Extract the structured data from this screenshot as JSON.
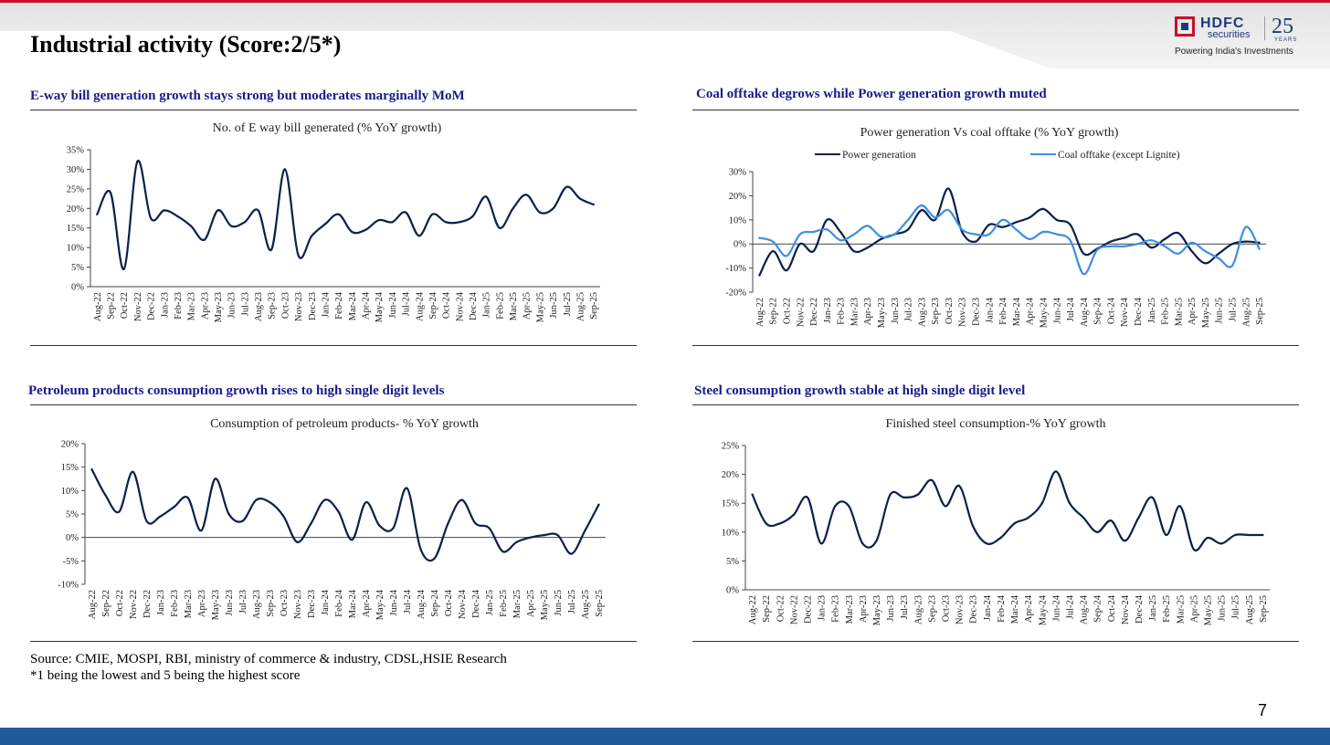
{
  "page": {
    "title": "Industrial activity (Score:2/5*)",
    "page_number": "7",
    "source_line1": "Source: CMIE, MOSPI, RBI, ministry of commerce & industry, CDSL,HSIE Research",
    "source_line2": "*1 being the lowest and 5 being the highest score"
  },
  "logo": {
    "brand": "HDFC",
    "sub": "securities",
    "years": "25",
    "years_label": "YEARS",
    "tagline": "Powering India's Investments"
  },
  "colors": {
    "accent_red": "#c8102e",
    "brand_blue": "#1f5a99",
    "heading_blue": "#1a1a8c",
    "series_dark": "#0d1f4a",
    "series_light": "#3d8fe0"
  },
  "sections": {
    "eway": "E-way bill generation growth stays strong but moderates marginally MoM",
    "coal": "Coal offtake degrows while Power generation growth muted",
    "petroleum": "Petroleum products consumption growth rises to high single digit levels",
    "steel": "Steel consumption growth stable at high single digit level"
  },
  "chart_data": [
    {
      "id": "eway",
      "type": "line",
      "title": "No. of E way bill generated (% YoY growth)",
      "categories": [
        "Aug-22",
        "Sep-22",
        "Oct-22",
        "Nov-22",
        "Dec-22",
        "Jan-23",
        "Feb-23",
        "Mar-23",
        "Apr-23",
        "May-23",
        "Jun-23",
        "Jul-23",
        "Aug-23",
        "Sep-23",
        "Oct-23",
        "Nov-23",
        "Dec-23",
        "Jan-24",
        "Feb-24",
        "Mar-24",
        "Apr-24",
        "May-24",
        "Jun-24",
        "Jul-24",
        "Aug-24",
        "Sep-24",
        "Oct-24",
        "Nov-24",
        "Dec-24",
        "Jan-25",
        "Feb-25",
        "Mar-25",
        "Apr-25",
        "May-25",
        "Jun-25",
        "Jul-25",
        "Aug-25",
        "Sep-25"
      ],
      "series": [
        {
          "name": "E way bill",
          "color": "#0d1f4a",
          "values": [
            18.5,
            24,
            4.5,
            32,
            17.5,
            19.5,
            18,
            15.5,
            12,
            19.5,
            15.5,
            16.5,
            19.5,
            9.5,
            30,
            8,
            13,
            16,
            18.5,
            14,
            14.5,
            17,
            16.5,
            19,
            13,
            18.5,
            16.5,
            16.5,
            18,
            23,
            15,
            20,
            23.5,
            19,
            20,
            25.5,
            22.5,
            21
          ]
        }
      ],
      "ylim": [
        0,
        35
      ],
      "yticks": [
        0,
        5,
        10,
        15,
        20,
        25,
        30,
        35
      ],
      "ytick_labels": [
        "0%",
        "5%",
        "10%",
        "15%",
        "20%",
        "25%",
        "30%",
        "35%"
      ],
      "legend": []
    },
    {
      "id": "coal",
      "type": "line",
      "title": "Power generation Vs coal offtake (% YoY growth)",
      "categories": [
        "Aug-22",
        "Sep-22",
        "Oct-22",
        "Nov-22",
        "Dec-22",
        "Jan-23",
        "Feb-23",
        "Mar-23",
        "Apr-23",
        "May-23",
        "Jun-23",
        "Jul-23",
        "Aug-23",
        "Sep-23",
        "Oct-23",
        "Nov-23",
        "Dec-23",
        "Jan-24",
        "Feb-24",
        "Mar-24",
        "Apr-24",
        "May-24",
        "Jun-24",
        "Jul-24",
        "Aug-24",
        "Sep-24",
        "Oct-24",
        "Nov-24",
        "Dec-24",
        "Jan-25",
        "Feb-25",
        "Mar-25",
        "Apr-25",
        "May-25",
        "Jun-25",
        "Jul-25",
        "Aug-25",
        "Sep-25"
      ],
      "series": [
        {
          "name": "Power generation",
          "color": "#0d1f4a",
          "values": [
            -13,
            -3,
            -11,
            0,
            -3,
            10,
            5,
            -3,
            -1.5,
            2,
            4,
            6,
            14,
            10,
            23,
            5,
            1,
            8,
            7,
            9,
            11,
            14.5,
            10,
            8,
            -4,
            -2,
            1,
            2.5,
            4,
            -1.5,
            2,
            4.5,
            -3,
            -8,
            -4,
            0,
            1,
            0.5
          ]
        },
        {
          "name": "Coal offtake (except Lignite)",
          "color": "#3d8fe0",
          "values": [
            2.5,
            1,
            -5,
            4,
            5,
            6,
            1.5,
            4,
            7.5,
            3,
            4,
            10,
            16,
            11,
            14,
            6,
            4,
            4,
            10,
            6,
            2,
            5,
            4,
            1.5,
            -12.5,
            -2.5,
            -1,
            -1,
            0,
            1.5,
            -1,
            -4,
            0.5,
            -3,
            -6,
            -9,
            7,
            -2
          ]
        }
      ],
      "ylim": [
        -20,
        30
      ],
      "yticks": [
        -20,
        -10,
        0,
        10,
        20,
        30
      ],
      "ytick_labels": [
        "-20%",
        "-10%",
        "0%",
        "10%",
        "20%",
        "30%"
      ],
      "legend": [
        "Power generation",
        "Coal offtake (except Lignite)"
      ]
    },
    {
      "id": "petroleum",
      "type": "line",
      "title": "Consumption of petroleum products- % YoY growth",
      "categories": [
        "Aug-22",
        "Sep-22",
        "Oct-22",
        "Nov-22",
        "Dec-22",
        "Jan-23",
        "Feb-23",
        "Mar-23",
        "Apr-23",
        "May-23",
        "Jun-23",
        "Jul-23",
        "Aug-23",
        "Sep-23",
        "Oct-23",
        "Nov-23",
        "Dec-23",
        "Jan-24",
        "Feb-24",
        "Mar-24",
        "Apr-24",
        "May-24",
        "Jun-24",
        "Jul-24",
        "Aug-24",
        "Sep-24",
        "Oct-24",
        "Nov-24",
        "Dec-24",
        "Jan-25",
        "Feb-25",
        "Mar-25",
        "Apr-25",
        "May-25",
        "Jun-25",
        "Jul-25",
        "Aug-25",
        "Sep-25"
      ],
      "series": [
        {
          "name": "Petroleum products",
          "color": "#0d1f4a",
          "values": [
            14.5,
            9,
            5.5,
            14,
            3.5,
            4.5,
            6.5,
            8.5,
            1.5,
            12.5,
            5,
            3.5,
            8,
            7.5,
            4.5,
            -1,
            3,
            8,
            5.5,
            -0.5,
            7.5,
            2.5,
            2,
            10.5,
            -2.5,
            -4.5,
            3,
            8,
            3,
            2,
            -3,
            -1,
            0,
            0.5,
            0.5,
            -3.5,
            1.5,
            7
          ]
        }
      ],
      "ylim": [
        -10,
        20
      ],
      "yticks": [
        -10,
        -5,
        0,
        5,
        10,
        15,
        20
      ],
      "ytick_labels": [
        "-10%",
        "-5%",
        "0%",
        "5%",
        "10%",
        "15%",
        "20%"
      ],
      "legend": []
    },
    {
      "id": "steel",
      "type": "line",
      "title": "Finished steel consumption-% YoY growth",
      "categories": [
        "Aug-22",
        "Sep-22",
        "Oct-22",
        "Nov-22",
        "Dec-22",
        "Jan-23",
        "Feb-23",
        "Mar-23",
        "Apr-23",
        "May-23",
        "Jun-23",
        "Jul-23",
        "Aug-23",
        "Sep-23",
        "Oct-23",
        "Nov-23",
        "Dec-23",
        "Jan-24",
        "Feb-24",
        "Mar-24",
        "Apr-24",
        "May-24",
        "Jun-24",
        "Jul-24",
        "Aug-24",
        "Sep-24",
        "Oct-24",
        "Nov-24",
        "Dec-24",
        "Jan-25",
        "Feb-25",
        "Mar-25",
        "Apr-25",
        "May-25",
        "Jun-25",
        "Jul-25",
        "Aug-25",
        "Sep-25"
      ],
      "series": [
        {
          "name": "Finished steel",
          "color": "#0d1f4a",
          "values": [
            16.5,
            11.5,
            11.5,
            13,
            16,
            8,
            14.5,
            14.5,
            8,
            8.5,
            16.5,
            16,
            16.5,
            19,
            14.5,
            18,
            11,
            8,
            9,
            11.5,
            12.5,
            15,
            20.5,
            15,
            12.5,
            10,
            12,
            8.5,
            12.5,
            16,
            9.5,
            14.5,
            7,
            9,
            8,
            9.5,
            9.5,
            9.5
          ]
        }
      ],
      "ylim": [
        0,
        25
      ],
      "yticks": [
        0,
        5,
        10,
        15,
        20,
        25
      ],
      "ytick_labels": [
        "0%",
        "5%",
        "10%",
        "15%",
        "20%",
        "25%"
      ],
      "legend": []
    }
  ]
}
